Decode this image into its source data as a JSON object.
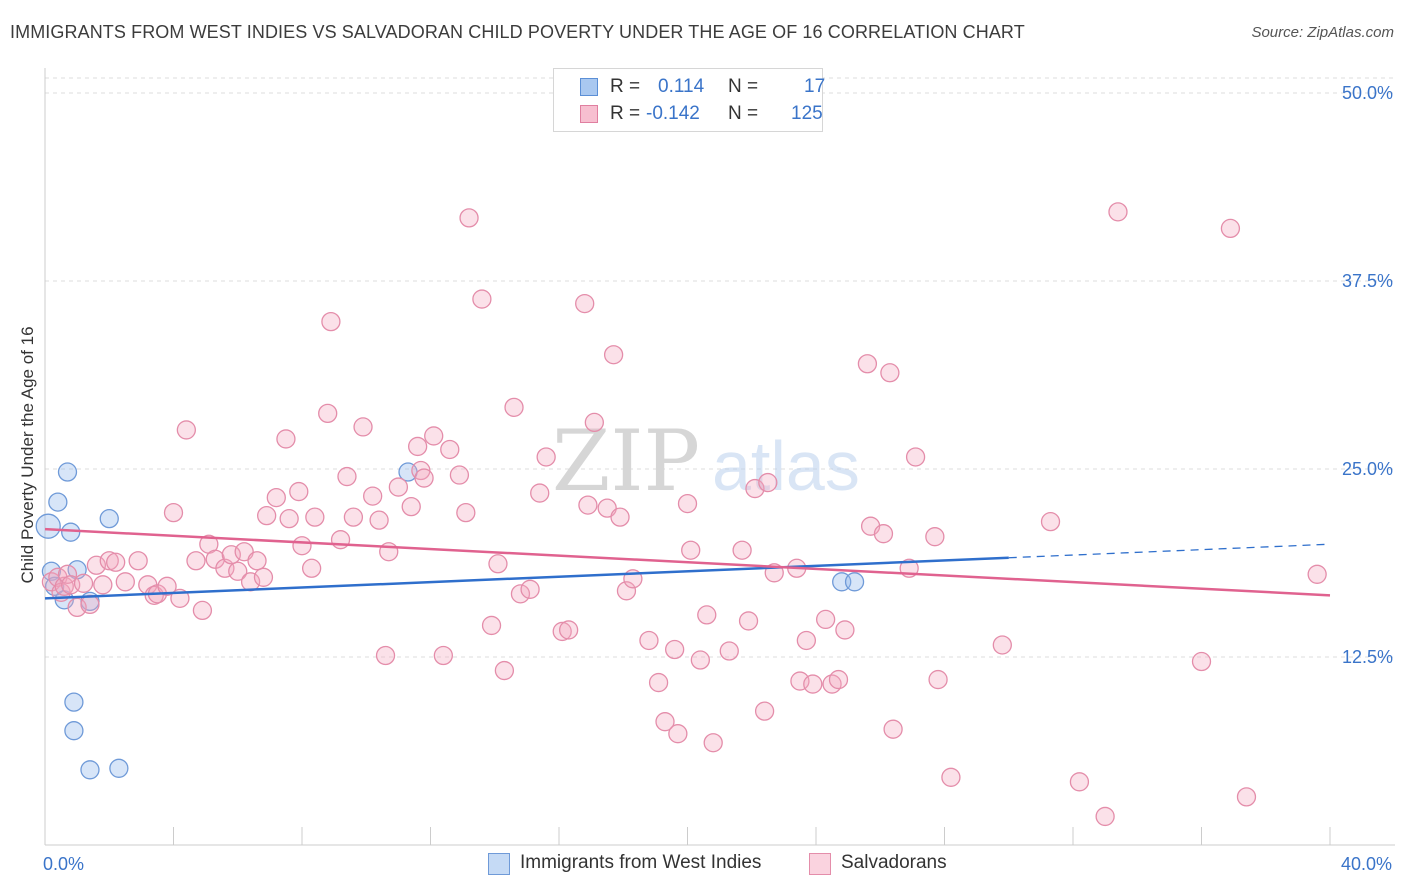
{
  "title": "IMMIGRANTS FROM WEST INDIES VS SALVADORAN CHILD POVERTY UNDER THE AGE OF 16 CORRELATION CHART",
  "source": "Source: ZipAtlas.com",
  "watermark": {
    "zip": "ZIP",
    "atlas": "atlas"
  },
  "legend": {
    "rows": [
      {
        "r_label": "R =",
        "r_value": "0.114",
        "n_label": "N =",
        "n_value": "17",
        "color": "#a9c8f0",
        "border": "#5b8fd6"
      },
      {
        "r_label": "R =",
        "r_value": "-0.142",
        "n_label": "N =",
        "n_value": "125",
        "color": "#f7bfd0",
        "border": "#e07fa0"
      }
    ]
  },
  "bottom_legend": [
    {
      "label": "Immigrants from West Indies",
      "color": "#c5daf5",
      "border": "#6f9ad8"
    },
    {
      "label": "Salvadorans",
      "color": "#fad3df",
      "border": "#e48daa"
    }
  ],
  "chart_data": {
    "type": "scatter",
    "title": "IMMIGRANTS FROM WEST INDIES VS SALVADORAN CHILD POVERTY UNDER THE AGE OF 16 CORRELATION CHART",
    "xlabel": "",
    "ylabel": "Child Poverty Under the Age of 16",
    "xlim": [
      0,
      40
    ],
    "ylim": [
      0,
      51
    ],
    "x_tick_labels": [
      {
        "value": 0,
        "label": "0.0%"
      },
      {
        "value": 40,
        "label": "40.0%"
      }
    ],
    "y_tick_labels": [
      {
        "value": 12.5,
        "label": "12.5%"
      },
      {
        "value": 25,
        "label": "25.0%"
      },
      {
        "value": 37.5,
        "label": "37.5%"
      },
      {
        "value": 50,
        "label": "50.0%"
      }
    ],
    "x_minor_ticks": [
      4,
      8,
      12,
      16,
      20,
      24,
      28,
      32,
      36,
      40
    ],
    "grid": true,
    "series": [
      {
        "name": "Immigrants from West Indies",
        "color": "#8db4ea",
        "stroke": "#6f9ad8",
        "trend": {
          "x0": 0,
          "y0": 16.4,
          "x1": 30,
          "y1": 19.1,
          "dash_to_x": 40,
          "dash_to_y": 20.0,
          "color": "#2f6fcc"
        },
        "points": [
          [
            0.1,
            21.2
          ],
          [
            0.2,
            18.2
          ],
          [
            0.3,
            17.2
          ],
          [
            0.4,
            22.8
          ],
          [
            0.6,
            16.3
          ],
          [
            0.7,
            24.8
          ],
          [
            0.8,
            20.8
          ],
          [
            0.9,
            9.5
          ],
          [
            0.9,
            7.6
          ],
          [
            1.0,
            18.3
          ],
          [
            1.4,
            16.2
          ],
          [
            1.4,
            5.0
          ],
          [
            2.0,
            21.7
          ],
          [
            2.3,
            5.1
          ],
          [
            11.3,
            24.8
          ],
          [
            24.8,
            17.5
          ],
          [
            25.2,
            17.5
          ]
        ]
      },
      {
        "name": "Salvadorans",
        "color": "#f3a9c1",
        "stroke": "#e48daa",
        "trend": {
          "x0": 0,
          "y0": 21.0,
          "x1": 40,
          "y1": 16.6,
          "color": "#e0628f"
        },
        "points": [
          [
            0.2,
            17.5
          ],
          [
            0.4,
            17.8
          ],
          [
            0.5,
            16.8
          ],
          [
            0.6,
            17.2
          ],
          [
            0.7,
            18.0
          ],
          [
            0.8,
            17.3
          ],
          [
            1.0,
            15.8
          ],
          [
            1.2,
            17.4
          ],
          [
            1.4,
            16.0
          ],
          [
            1.6,
            18.6
          ],
          [
            1.8,
            17.3
          ],
          [
            2.0,
            18.9
          ],
          [
            2.2,
            18.8
          ],
          [
            2.5,
            17.5
          ],
          [
            2.9,
            18.9
          ],
          [
            3.2,
            17.3
          ],
          [
            3.4,
            16.6
          ],
          [
            3.5,
            16.7
          ],
          [
            3.8,
            17.2
          ],
          [
            4.0,
            22.1
          ],
          [
            4.2,
            16.4
          ],
          [
            4.4,
            27.6
          ],
          [
            4.7,
            18.9
          ],
          [
            4.9,
            15.6
          ],
          [
            5.1,
            20.0
          ],
          [
            5.3,
            19.0
          ],
          [
            5.6,
            18.4
          ],
          [
            5.8,
            19.3
          ],
          [
            6.0,
            18.2
          ],
          [
            6.2,
            19.5
          ],
          [
            6.4,
            17.5
          ],
          [
            6.6,
            18.9
          ],
          [
            6.8,
            17.8
          ],
          [
            6.9,
            21.9
          ],
          [
            7.2,
            23.1
          ],
          [
            7.5,
            27.0
          ],
          [
            7.6,
            21.7
          ],
          [
            7.9,
            23.5
          ],
          [
            8.0,
            19.9
          ],
          [
            8.3,
            18.4
          ],
          [
            8.4,
            21.8
          ],
          [
            8.8,
            28.7
          ],
          [
            8.9,
            34.8
          ],
          [
            9.2,
            20.3
          ],
          [
            9.4,
            24.5
          ],
          [
            9.6,
            21.8
          ],
          [
            9.9,
            27.8
          ],
          [
            10.2,
            23.2
          ],
          [
            10.4,
            21.6
          ],
          [
            10.6,
            12.6
          ],
          [
            10.7,
            19.5
          ],
          [
            11.0,
            23.8
          ],
          [
            11.4,
            22.5
          ],
          [
            11.6,
            26.5
          ],
          [
            11.7,
            24.9
          ],
          [
            11.8,
            24.4
          ],
          [
            12.1,
            27.2
          ],
          [
            12.4,
            12.6
          ],
          [
            12.6,
            26.3
          ],
          [
            12.9,
            24.6
          ],
          [
            13.1,
            22.1
          ],
          [
            13.2,
            41.7
          ],
          [
            13.6,
            36.3
          ],
          [
            13.9,
            14.6
          ],
          [
            14.1,
            18.7
          ],
          [
            14.3,
            11.6
          ],
          [
            14.6,
            29.1
          ],
          [
            14.8,
            16.7
          ],
          [
            15.1,
            17.0
          ],
          [
            15.4,
            23.4
          ],
          [
            15.6,
            25.8
          ],
          [
            16.1,
            14.2
          ],
          [
            16.3,
            14.3
          ],
          [
            16.8,
            36.0
          ],
          [
            16.9,
            22.6
          ],
          [
            17.1,
            28.1
          ],
          [
            17.5,
            22.4
          ],
          [
            17.7,
            32.6
          ],
          [
            17.9,
            21.8
          ],
          [
            18.1,
            16.9
          ],
          [
            18.3,
            17.7
          ],
          [
            18.8,
            13.6
          ],
          [
            19.1,
            10.8
          ],
          [
            19.3,
            8.2
          ],
          [
            19.6,
            13.0
          ],
          [
            19.7,
            7.4
          ],
          [
            20.0,
            22.7
          ],
          [
            20.1,
            19.6
          ],
          [
            20.4,
            12.3
          ],
          [
            20.6,
            15.3
          ],
          [
            20.8,
            6.8
          ],
          [
            21.3,
            12.9
          ],
          [
            21.7,
            19.6
          ],
          [
            21.9,
            14.9
          ],
          [
            22.1,
            23.7
          ],
          [
            22.4,
            8.9
          ],
          [
            22.5,
            24.1
          ],
          [
            22.7,
            18.1
          ],
          [
            23.4,
            18.4
          ],
          [
            23.5,
            10.9
          ],
          [
            23.7,
            13.6
          ],
          [
            23.9,
            10.7
          ],
          [
            24.3,
            15.0
          ],
          [
            24.5,
            10.7
          ],
          [
            24.7,
            11.0
          ],
          [
            24.9,
            14.3
          ],
          [
            25.6,
            32.0
          ],
          [
            25.7,
            21.2
          ],
          [
            26.1,
            20.7
          ],
          [
            26.3,
            31.4
          ],
          [
            26.4,
            7.7
          ],
          [
            26.9,
            18.4
          ],
          [
            27.1,
            25.8
          ],
          [
            27.7,
            20.5
          ],
          [
            27.8,
            11.0
          ],
          [
            28.2,
            4.5
          ],
          [
            29.8,
            13.3
          ],
          [
            31.3,
            21.5
          ],
          [
            32.2,
            4.2
          ],
          [
            33.0,
            1.9
          ],
          [
            33.4,
            42.1
          ],
          [
            36.0,
            12.2
          ],
          [
            36.9,
            41.0
          ],
          [
            37.4,
            3.2
          ],
          [
            39.6,
            18.0
          ]
        ]
      }
    ]
  }
}
